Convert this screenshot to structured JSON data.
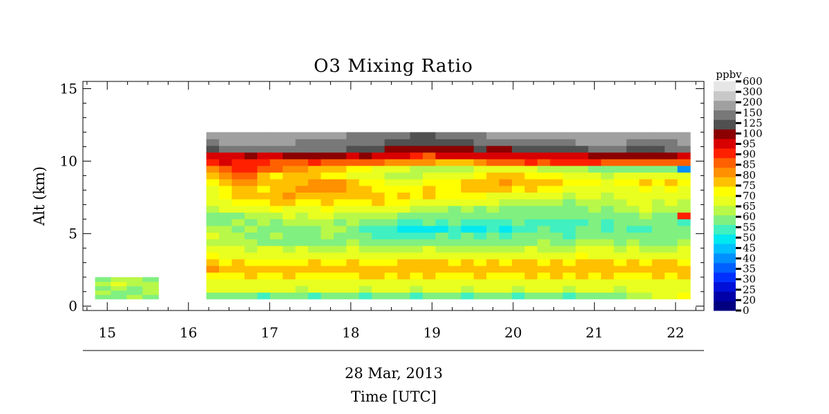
{
  "chart_data": {
    "type": "heatmap",
    "title": "O3 Mixing Ratio",
    "ylabel": "Alt (km)",
    "xlabel_date": "28 Mar, 2013",
    "xlabel": "Time [UTC]",
    "xlim": [
      14.7,
      22.35
    ],
    "ylim": [
      -0.3,
      15.5
    ],
    "x_ticks": [
      15,
      16,
      17,
      18,
      19,
      20,
      21,
      22
    ],
    "y_ticks": [
      0,
      5,
      10,
      15
    ],
    "colorbar": {
      "unit": "ppbv",
      "levels": [
        0,
        20,
        25,
        30,
        35,
        40,
        45,
        50,
        55,
        60,
        65,
        70,
        75,
        80,
        85,
        90,
        95,
        100,
        125,
        150,
        200,
        300,
        600
      ],
      "colors": [
        "#000080",
        "#0000a8",
        "#0010d8",
        "#0030ff",
        "#0060ff",
        "#0090ff",
        "#00c0ff",
        "#00e8f0",
        "#40f0c0",
        "#80f080",
        "#b8f848",
        "#e8ff20",
        "#ffff00",
        "#ffc000",
        "#ff9000",
        "#ff6000",
        "#ff2000",
        "#d80000",
        "#8b0000",
        "#505050",
        "#787878",
        "#a0a0a0",
        "#c8c8c8",
        "#e6e6e6"
      ]
    },
    "segments": [
      {
        "x_start": 14.85,
        "x_end": 15.63,
        "alt_start": 0.5,
        "alt_end": 2.0,
        "profiles": [
          [
            62,
            66,
            64,
            68,
            62
          ],
          [
            64,
            60,
            66,
            70,
            65
          ],
          [
            66,
            64,
            62,
            68,
            66
          ],
          [
            63,
            67,
            65,
            69,
            64
          ]
        ]
      },
      {
        "x_start": 16.22,
        "x_end": 22.18,
        "alt_start": 0.5,
        "alt_end": 12.0,
        "profiles": [
          [
            60,
            72,
            70,
            78,
            85,
            80,
            76,
            72,
            68,
            70,
            65,
            62,
            60,
            66,
            70,
            72,
            74,
            78,
            82,
            88,
            95,
            110,
            180,
            250,
            350
          ],
          [
            62,
            70,
            72,
            76,
            84,
            78,
            74,
            70,
            66,
            68,
            66,
            64,
            62,
            70,
            74,
            76,
            78,
            84,
            88,
            92,
            100,
            115,
            200,
            300,
            400
          ],
          [
            60,
            72,
            74,
            78,
            82,
            80,
            72,
            70,
            65,
            66,
            64,
            66,
            64,
            72,
            76,
            80,
            80,
            85,
            90,
            95,
            98,
            120,
            220,
            300,
            500
          ],
          [
            62,
            70,
            72,
            80,
            84,
            78,
            72,
            68,
            66,
            64,
            66,
            62,
            65,
            74,
            78,
            82,
            84,
            86,
            90,
            95,
            96,
            130,
            220,
            350,
            500
          ],
          [
            58,
            70,
            74,
            78,
            80,
            76,
            72,
            70,
            64,
            62,
            62,
            66,
            66,
            72,
            78,
            80,
            78,
            80,
            82,
            92,
            95,
            110,
            200,
            300,
            500
          ],
          [
            60,
            72,
            72,
            76,
            82,
            78,
            74,
            70,
            62,
            66,
            64,
            64,
            68,
            76,
            80,
            84,
            80,
            80,
            78,
            90,
            94,
            120,
            220,
            320,
            500
          ],
          [
            62,
            70,
            74,
            80,
            82,
            76,
            72,
            68,
            64,
            60,
            62,
            66,
            70,
            74,
            80,
            86,
            84,
            82,
            80,
            88,
            94,
            130,
            250,
            300,
            400
          ],
          [
            60,
            68,
            72,
            76,
            80,
            78,
            72,
            70,
            62,
            62,
            64,
            68,
            68,
            74,
            78,
            82,
            86,
            84,
            80,
            86,
            94,
            125,
            200,
            250,
            350
          ],
          [
            58,
            72,
            74,
            78,
            84,
            80,
            74,
            68,
            60,
            64,
            64,
            68,
            70,
            74,
            76,
            84,
            88,
            86,
            80,
            82,
            95,
            130,
            220,
            260,
            300
          ],
          [
            60,
            70,
            72,
            78,
            82,
            78,
            72,
            68,
            64,
            66,
            66,
            66,
            70,
            76,
            80,
            82,
            88,
            85,
            78,
            82,
            92,
            128,
            210,
            280,
            300
          ],
          [
            62,
            72,
            72,
            76,
            80,
            76,
            70,
            66,
            62,
            64,
            68,
            64,
            66,
            74,
            78,
            80,
            86,
            86,
            76,
            80,
            90,
            125,
            200,
            250,
            300
          ],
          [
            60,
            70,
            74,
            78,
            82,
            80,
            72,
            70,
            66,
            62,
            64,
            66,
            68,
            72,
            78,
            84,
            80,
            80,
            74,
            78,
            90,
            124,
            180,
            220,
            260
          ],
          [
            58,
            68,
            72,
            80,
            84,
            78,
            70,
            68,
            62,
            60,
            56,
            62,
            66,
            72,
            78,
            82,
            80,
            78,
            72,
            76,
            92,
            128,
            190,
            220,
            250
          ],
          [
            60,
            70,
            74,
            82,
            84,
            76,
            72,
            68,
            60,
            58,
            58,
            60,
            68,
            74,
            80,
            80,
            78,
            76,
            70,
            74,
            90,
            124,
            160,
            200,
            240
          ],
          [
            62,
            72,
            72,
            78,
            80,
            78,
            72,
            66,
            64,
            56,
            56,
            60,
            66,
            72,
            76,
            78,
            76,
            74,
            68,
            72,
            88,
            120,
            140,
            180,
            220
          ],
          [
            60,
            70,
            74,
            80,
            84,
            80,
            74,
            68,
            60,
            58,
            54,
            58,
            64,
            70,
            76,
            80,
            76,
            72,
            66,
            70,
            86,
            120,
            130,
            160,
            200
          ],
          [
            58,
            68,
            72,
            78,
            82,
            80,
            72,
            66,
            62,
            56,
            52,
            58,
            62,
            68,
            74,
            78,
            76,
            72,
            66,
            68,
            88,
            95,
            130,
            160,
            190
          ],
          [
            60,
            70,
            74,
            80,
            84,
            82,
            74,
            70,
            62,
            58,
            52,
            60,
            64,
            68,
            74,
            80,
            80,
            76,
            70,
            68,
            86,
            92,
            130,
            160,
            190
          ],
          [
            62,
            72,
            74,
            78,
            84,
            80,
            72,
            68,
            64,
            60,
            54,
            58,
            62,
            66,
            72,
            78,
            78,
            76,
            70,
            66,
            84,
            100,
            135,
            170,
            200
          ],
          [
            60,
            70,
            72,
            76,
            82,
            78,
            72,
            68,
            60,
            58,
            56,
            60,
            62,
            64,
            70,
            76,
            78,
            78,
            72,
            66,
            82,
            105,
            140,
            180,
            220
          ],
          [
            58,
            68,
            72,
            78,
            84,
            80,
            74,
            68,
            62,
            60,
            52,
            56,
            60,
            66,
            72,
            78,
            80,
            80,
            74,
            68,
            84,
            110,
            140,
            190,
            240
          ],
          [
            60,
            70,
            74,
            80,
            84,
            78,
            72,
            66,
            62,
            58,
            54,
            58,
            62,
            64,
            70,
            76,
            80,
            82,
            76,
            70,
            86,
            115,
            150,
            200,
            260
          ],
          [
            62,
            72,
            72,
            78,
            82,
            80,
            72,
            68,
            64,
            60,
            56,
            58,
            62,
            66,
            70,
            74,
            82,
            84,
            80,
            72,
            90,
            110,
            140,
            200,
            300
          ],
          [
            60,
            70,
            74,
            76,
            82,
            78,
            74,
            66,
            60,
            58,
            54,
            58,
            60,
            64,
            68,
            74,
            80,
            86,
            82,
            74,
            92,
            110,
            145,
            210,
            320
          ],
          [
            58,
            68,
            72,
            78,
            84,
            80,
            72,
            68,
            62,
            60,
            56,
            60,
            62,
            64,
            68,
            72,
            78,
            84,
            82,
            72,
            94,
            115,
            150,
            220,
            330
          ],
          [
            60,
            70,
            74,
            80,
            84,
            80,
            74,
            70,
            64,
            60,
            58,
            58,
            60,
            62,
            68,
            74,
            80,
            84,
            78,
            70,
            96,
            120,
            150,
            230,
            340
          ],
          [
            62,
            72,
            72,
            78,
            82,
            78,
            72,
            68,
            66,
            62,
            60,
            58,
            60,
            62,
            66,
            72,
            78,
            82,
            76,
            68,
            94,
            118,
            160,
            240,
            350
          ],
          [
            60,
            70,
            74,
            80,
            84,
            80,
            74,
            68,
            64,
            60,
            56,
            58,
            60,
            64,
            66,
            70,
            76,
            80,
            76,
            68,
            96,
            120,
            170,
            250,
            360
          ],
          [
            58,
            68,
            72,
            76,
            80,
            78,
            72,
            66,
            62,
            58,
            56,
            56,
            60,
            62,
            64,
            68,
            74,
            78,
            74,
            66,
            96,
            122,
            180,
            280,
            400
          ],
          [
            60,
            72,
            74,
            80,
            84,
            82,
            76,
            70,
            66,
            62,
            60,
            58,
            60,
            62,
            66,
            70,
            74,
            76,
            72,
            66,
            98,
            124,
            190,
            300,
            420
          ],
          [
            62,
            70,
            72,
            78,
            82,
            80,
            74,
            70,
            68,
            64,
            62,
            60,
            62,
            66,
            68,
            70,
            72,
            76,
            70,
            64,
            95,
            126,
            200,
            320,
            430
          ],
          [
            60,
            70,
            74,
            80,
            84,
            80,
            74,
            70,
            66,
            62,
            58,
            58,
            62,
            64,
            66,
            68,
            72,
            74,
            68,
            62,
            94,
            128,
            210,
            320,
            400
          ],
          [
            62,
            68,
            72,
            78,
            82,
            78,
            72,
            68,
            64,
            62,
            60,
            60,
            62,
            66,
            68,
            70,
            72,
            76,
            70,
            64,
            92,
            126,
            200,
            300,
            380
          ],
          [
            66,
            70,
            74,
            78,
            84,
            80,
            74,
            70,
            66,
            60,
            58,
            62,
            64,
            68,
            70,
            72,
            74,
            78,
            72,
            60,
            92,
            128,
            190,
            280,
            360
          ],
          [
            68,
            70,
            72,
            76,
            82,
            78,
            72,
            66,
            62,
            60,
            58,
            64,
            66,
            70,
            72,
            72,
            76,
            80,
            74,
            62,
            90,
            125,
            180,
            260,
            340
          ],
          [
            72,
            72,
            74,
            80,
            84,
            80,
            74,
            68,
            64,
            62,
            60,
            62,
            64,
            66,
            68,
            72,
            74,
            78,
            70,
            60,
            92,
            126,
            190,
            270,
            350
          ],
          [
            74,
            70,
            72,
            78,
            82,
            80,
            72,
            68,
            64,
            60,
            62,
            60,
            64,
            68,
            70,
            74,
            76,
            80,
            72,
            62,
            94,
            128,
            200,
            280,
            360
          ],
          [
            76,
            72,
            74,
            80,
            84,
            78,
            74,
            70,
            66,
            62,
            64,
            58,
            96,
            66,
            68,
            70,
            74,
            78,
            70,
            44,
            92,
            124,
            210,
            300,
            380
          ]
        ]
      }
    ]
  }
}
